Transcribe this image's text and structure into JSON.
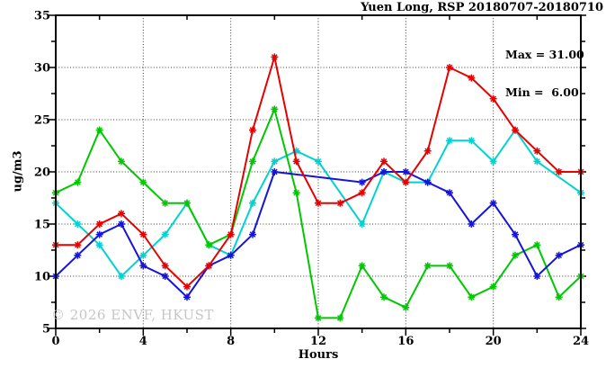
{
  "title": "Yuen Long, RSP 20180707-20180710",
  "stats": {
    "max": "Max = 31.00",
    "min": "Min =  6.00"
  },
  "watermark": "© 2026 ENVF, HKUST",
  "axes": {
    "x_label": "Hours",
    "y_label": "ug/m3"
  },
  "chart_data": {
    "type": "line",
    "title": "Yuen Long, RSP 20180707-20180710",
    "xlabel": "Hours",
    "ylabel": "ug/m3",
    "xlim": [
      0,
      24
    ],
    "ylim": [
      5,
      35
    ],
    "x": [
      0,
      1,
      2,
      3,
      4,
      5,
      6,
      7,
      8,
      9,
      10,
      11,
      12,
      13,
      14,
      15,
      16,
      17,
      18,
      19,
      20,
      21,
      22,
      23,
      24
    ],
    "x_major_ticks": [
      0,
      4,
      8,
      12,
      16,
      20,
      24
    ],
    "x_minor_ticks": [
      2,
      6,
      10,
      14,
      18,
      22
    ],
    "y_major_ticks": [
      5,
      10,
      15,
      20,
      25,
      30,
      35
    ],
    "y_minor_ticks": [
      7.5,
      12.5,
      17.5,
      22.5,
      27.5,
      32.5
    ],
    "grid_x": [
      4,
      8,
      12,
      16,
      20
    ],
    "grid_y": [
      10,
      15,
      20,
      25,
      30
    ],
    "grid_style": "dotted",
    "annotations": {
      "max": "Max = 31.00",
      "min": "Min =  6.00"
    },
    "series": [
      {
        "name": "cyan-line",
        "color": "#00d2d2",
        "values": [
          17,
          15,
          13,
          10,
          12,
          14,
          17,
          13,
          12,
          17,
          21,
          22,
          21,
          null,
          15,
          20,
          19,
          19,
          23,
          23,
          21,
          24,
          21,
          null,
          18
        ]
      },
      {
        "name": "green-line",
        "color": "#00c800",
        "values": [
          18,
          19,
          24,
          21,
          19,
          17,
          17,
          13,
          14,
          21,
          26,
          18,
          6,
          6,
          11,
          8,
          7,
          11,
          11,
          8,
          9,
          12,
          13,
          8,
          10
        ]
      },
      {
        "name": "blue-line",
        "color": "#1414dc",
        "values": [
          10,
          12,
          14,
          15,
          11,
          10,
          8,
          11,
          12,
          14,
          20,
          null,
          null,
          null,
          19,
          20,
          20,
          19,
          18,
          15,
          17,
          14,
          10,
          12,
          13
        ]
      },
      {
        "name": "red-line",
        "color": "#e60000",
        "values": [
          13,
          13,
          15,
          16,
          14,
          11,
          9,
          11,
          14,
          24,
          31,
          21,
          17,
          17,
          18,
          21,
          19,
          22,
          30,
          29,
          27,
          24,
          22,
          20,
          20
        ]
      }
    ]
  }
}
